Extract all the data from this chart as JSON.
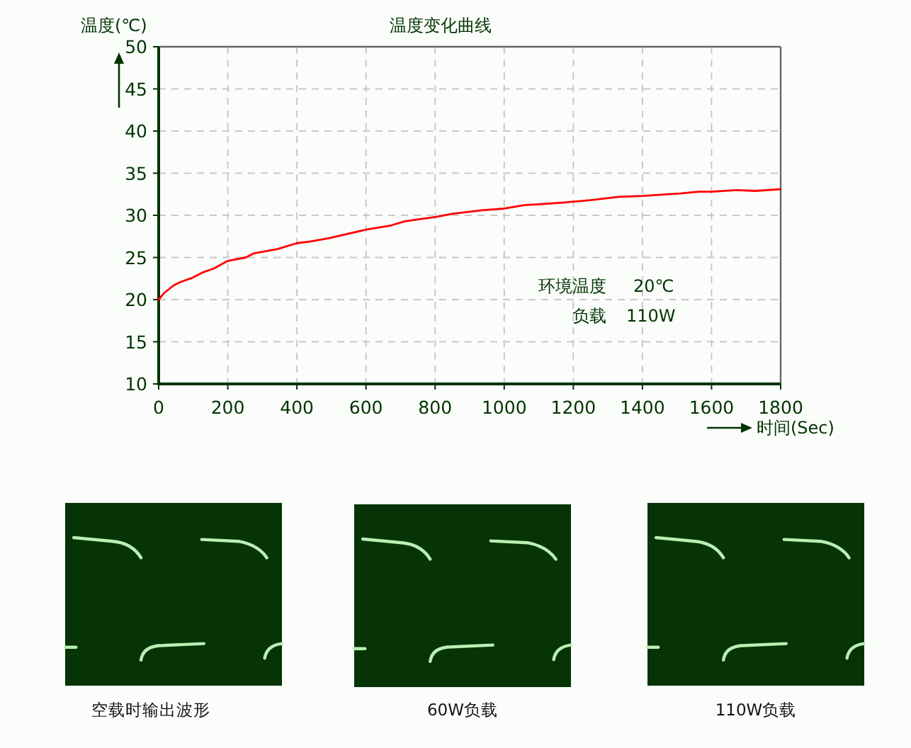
{
  "chart_data": [
    {
      "type": "line",
      "title": "温度变化曲线",
      "xlabel": "时间(Sec)",
      "ylabel": "温度(℃)",
      "x": [
        0,
        16,
        44,
        64,
        98,
        126,
        160,
        200,
        252,
        276,
        344,
        400,
        440,
        494,
        600,
        672,
        713,
        800,
        853,
        935,
        1000,
        1058,
        1167,
        1249,
        1331,
        1400,
        1509,
        1563,
        1600,
        1673,
        1727,
        1800
      ],
      "values": [
        20.0,
        20.8,
        21.7,
        22.1,
        22.6,
        23.2,
        23.7,
        24.6,
        25.0,
        25.5,
        26.0,
        26.7,
        26.9,
        27.3,
        28.3,
        28.8,
        29.3,
        29.8,
        30.2,
        30.6,
        30.8,
        31.2,
        31.5,
        31.8,
        32.2,
        32.3,
        32.6,
        32.8,
        32.8,
        33.0,
        32.9,
        33.1
      ],
      "color": "#ff0000",
      "xlim": [
        0,
        1800
      ],
      "ylim": [
        10,
        50
      ],
      "xticks": [
        0,
        200,
        400,
        600,
        800,
        1000,
        1200,
        1400,
        1600,
        1800
      ],
      "yticks": [
        10,
        15,
        20,
        25,
        30,
        35,
        40,
        45,
        50
      ],
      "grid": true,
      "annotations": [
        "环境温度",
        "20℃",
        "负载",
        "110W"
      ]
    },
    {
      "type": "other",
      "annotations": [
        "空载时输出波形",
        "60W负载",
        "110W负载"
      ]
    }
  ]
}
